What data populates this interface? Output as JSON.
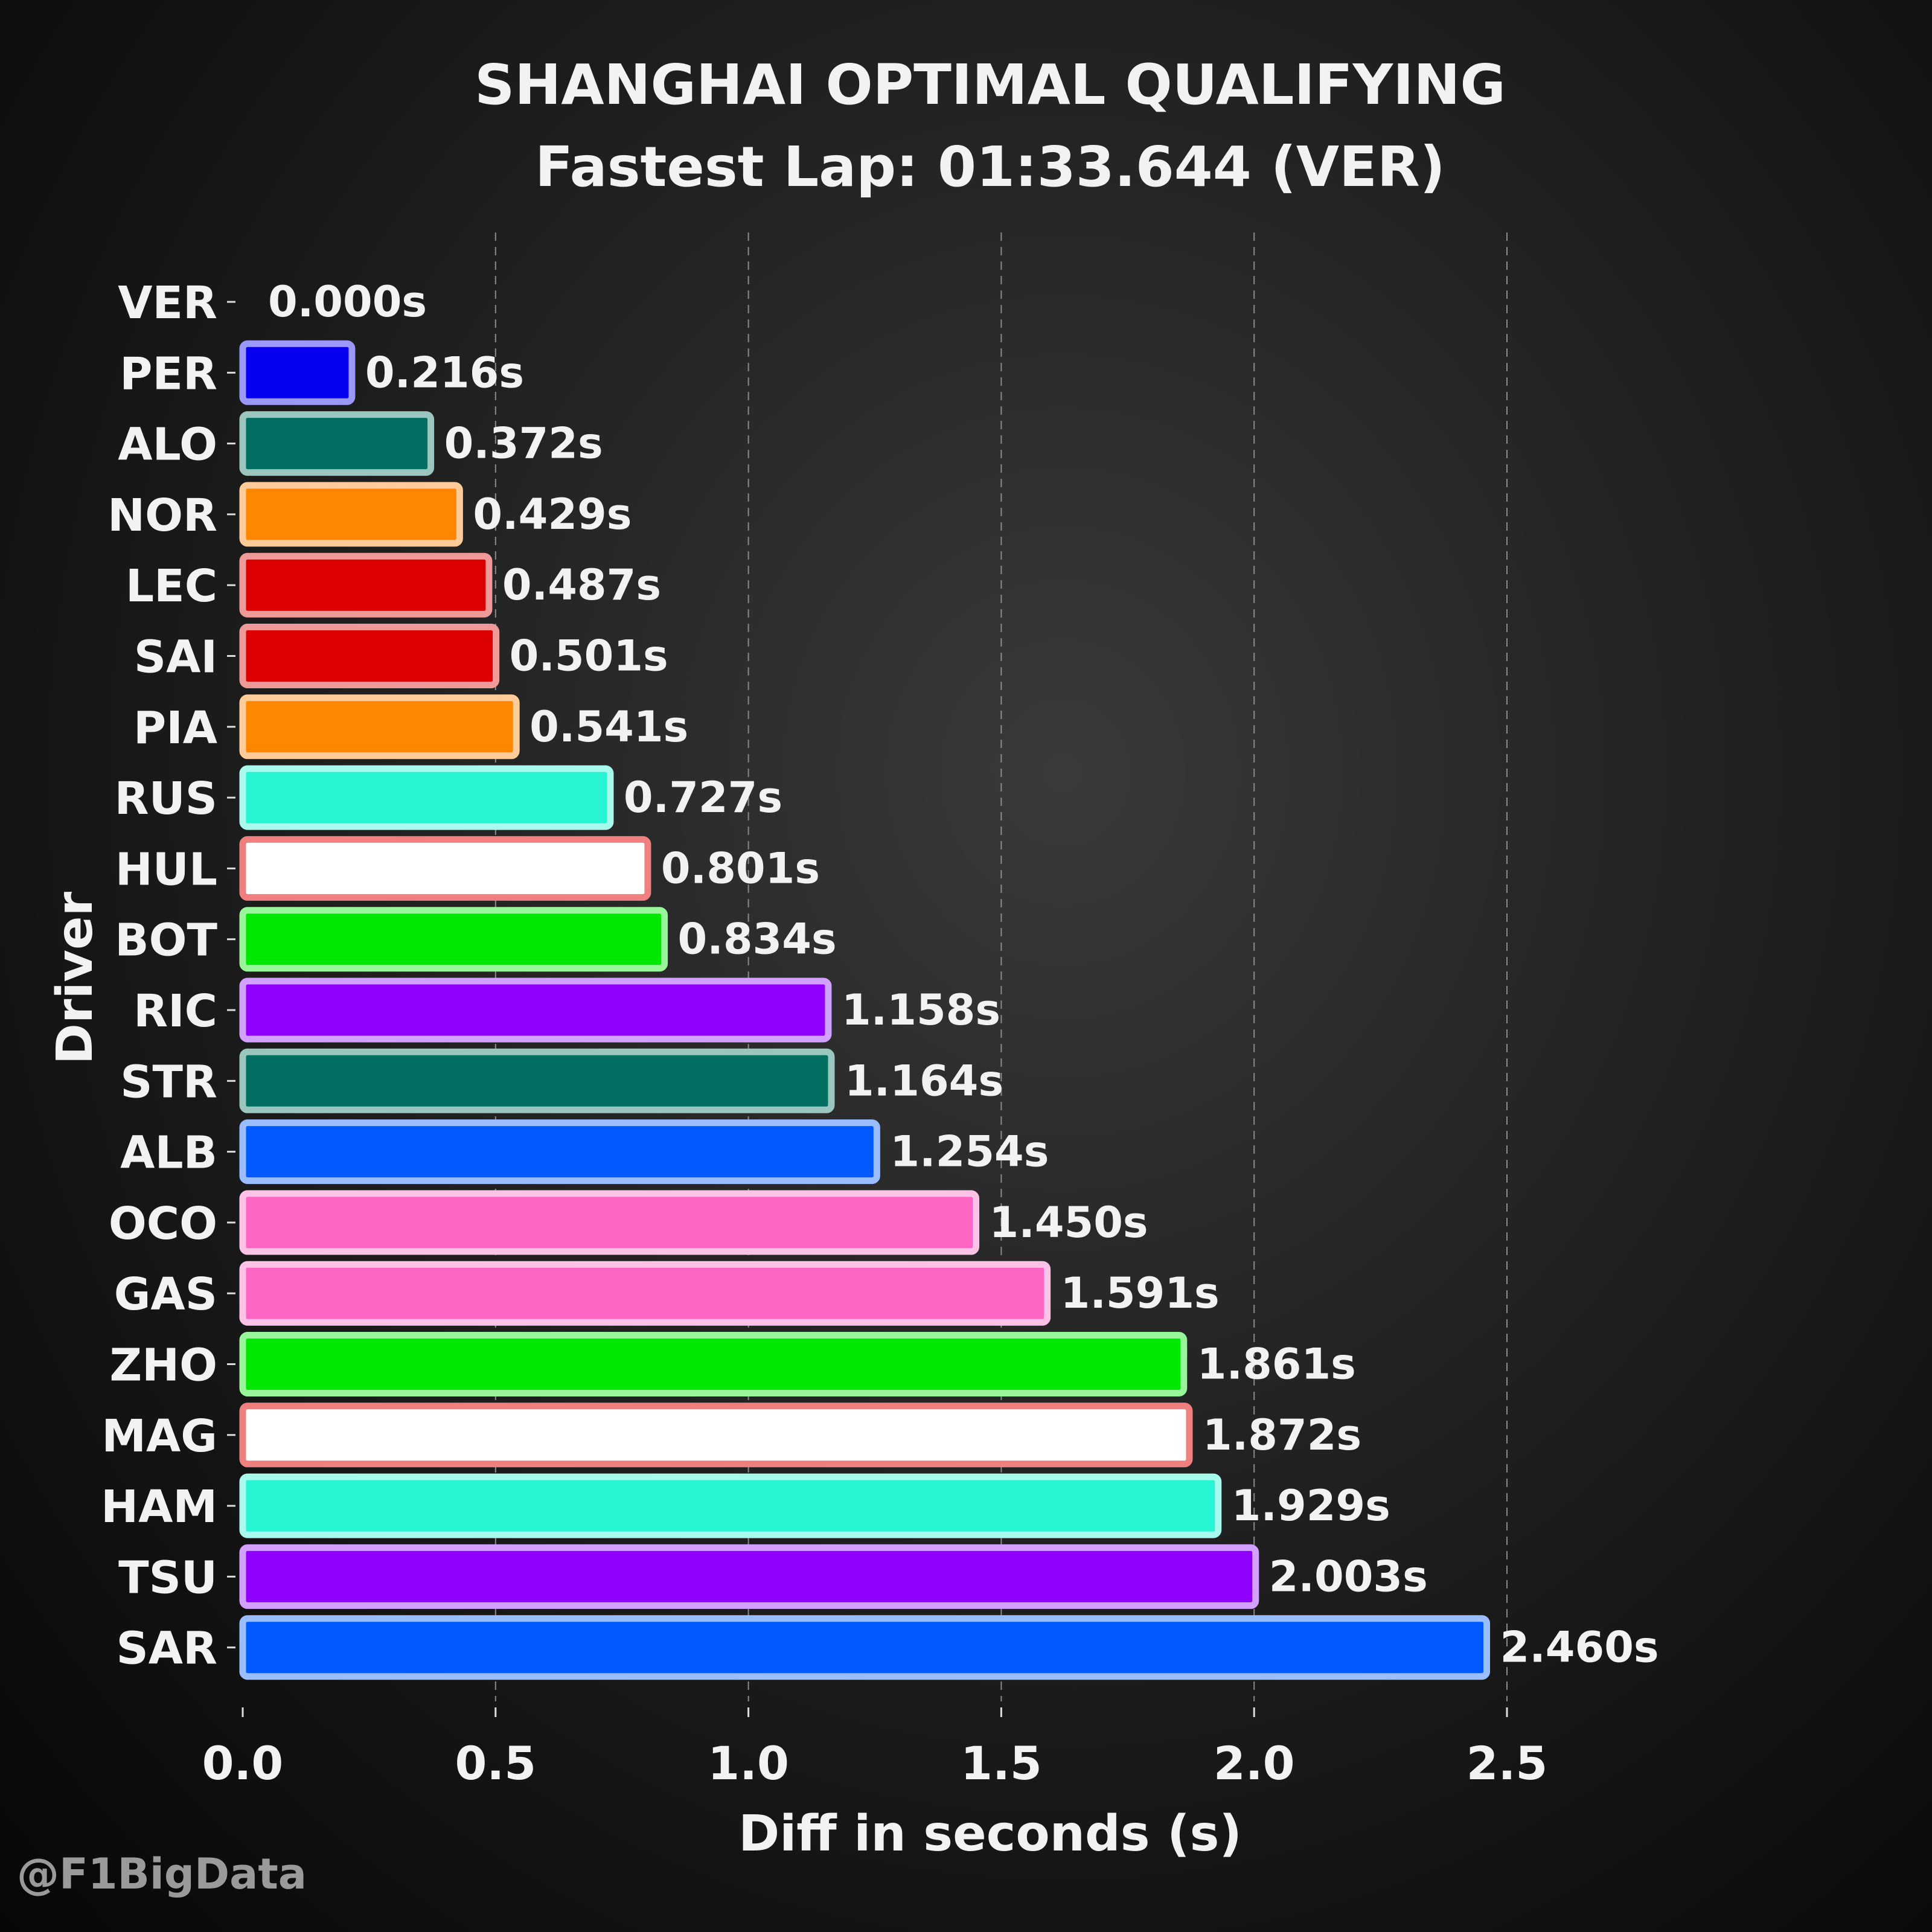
{
  "chart_data": {
    "type": "bar",
    "orientation": "horizontal",
    "title": "SHANGHAI OPTIMAL QUALIFYING",
    "subtitle": "Fastest Lap: 01:33.644 (VER)",
    "xlabel": "Diff in seconds (s)",
    "ylabel": "Driver",
    "xlim": [
      0,
      2.5
    ],
    "xticks": [
      "0.0",
      "0.5",
      "1.0",
      "1.5",
      "2.0",
      "2.5"
    ],
    "grid": "vertical dashed",
    "categories": [
      "VER",
      "PER",
      "ALO",
      "NOR",
      "LEC",
      "SAI",
      "PIA",
      "RUS",
      "HUL",
      "BOT",
      "RIC",
      "STR",
      "ALB",
      "OCO",
      "GAS",
      "ZHO",
      "MAG",
      "HAM",
      "TSU",
      "SAR"
    ],
    "values": [
      0.0,
      0.216,
      0.372,
      0.429,
      0.487,
      0.501,
      0.541,
      0.727,
      0.801,
      0.834,
      1.158,
      1.164,
      1.254,
      1.45,
      1.591,
      1.861,
      1.872,
      1.929,
      2.003,
      2.46
    ],
    "value_labels": [
      "0.000s",
      "0.216s",
      "0.372s",
      "0.429s",
      "0.487s",
      "0.501s",
      "0.541s",
      "0.727s",
      "0.801s",
      "0.834s",
      "1.158s",
      "1.164s",
      "1.254s",
      "1.450s",
      "1.591s",
      "1.861s",
      "1.872s",
      "1.929s",
      "2.003s",
      "2.460s"
    ],
    "bar_colors": [
      "#0600ef",
      "#0600ef",
      "#006f62",
      "#ff8700",
      "#dc0000",
      "#dc0000",
      "#ff8700",
      "#27f4d2",
      "#ffffff",
      "#00e701",
      "#8f00ff",
      "#006f62",
      "#005aff",
      "#ff66c4",
      "#ff66c4",
      "#00e701",
      "#ffffff",
      "#27f4d2",
      "#8f00ff",
      "#005aff"
    ],
    "edge_colors": [
      "#9a98f8",
      "#9a98f8",
      "#9bc6c0",
      "#ffcb99",
      "#f09999",
      "#f09999",
      "#ffcb99",
      "#a8faed",
      "#f08080",
      "#99f599",
      "#d2a0ff",
      "#9bc6c0",
      "#99bdff",
      "#ffc2e7",
      "#ffc2e7",
      "#99f599",
      "#f08080",
      "#a8faed",
      "#d2a0ff",
      "#99bdff"
    ]
  },
  "watermark": "@F1BigData"
}
